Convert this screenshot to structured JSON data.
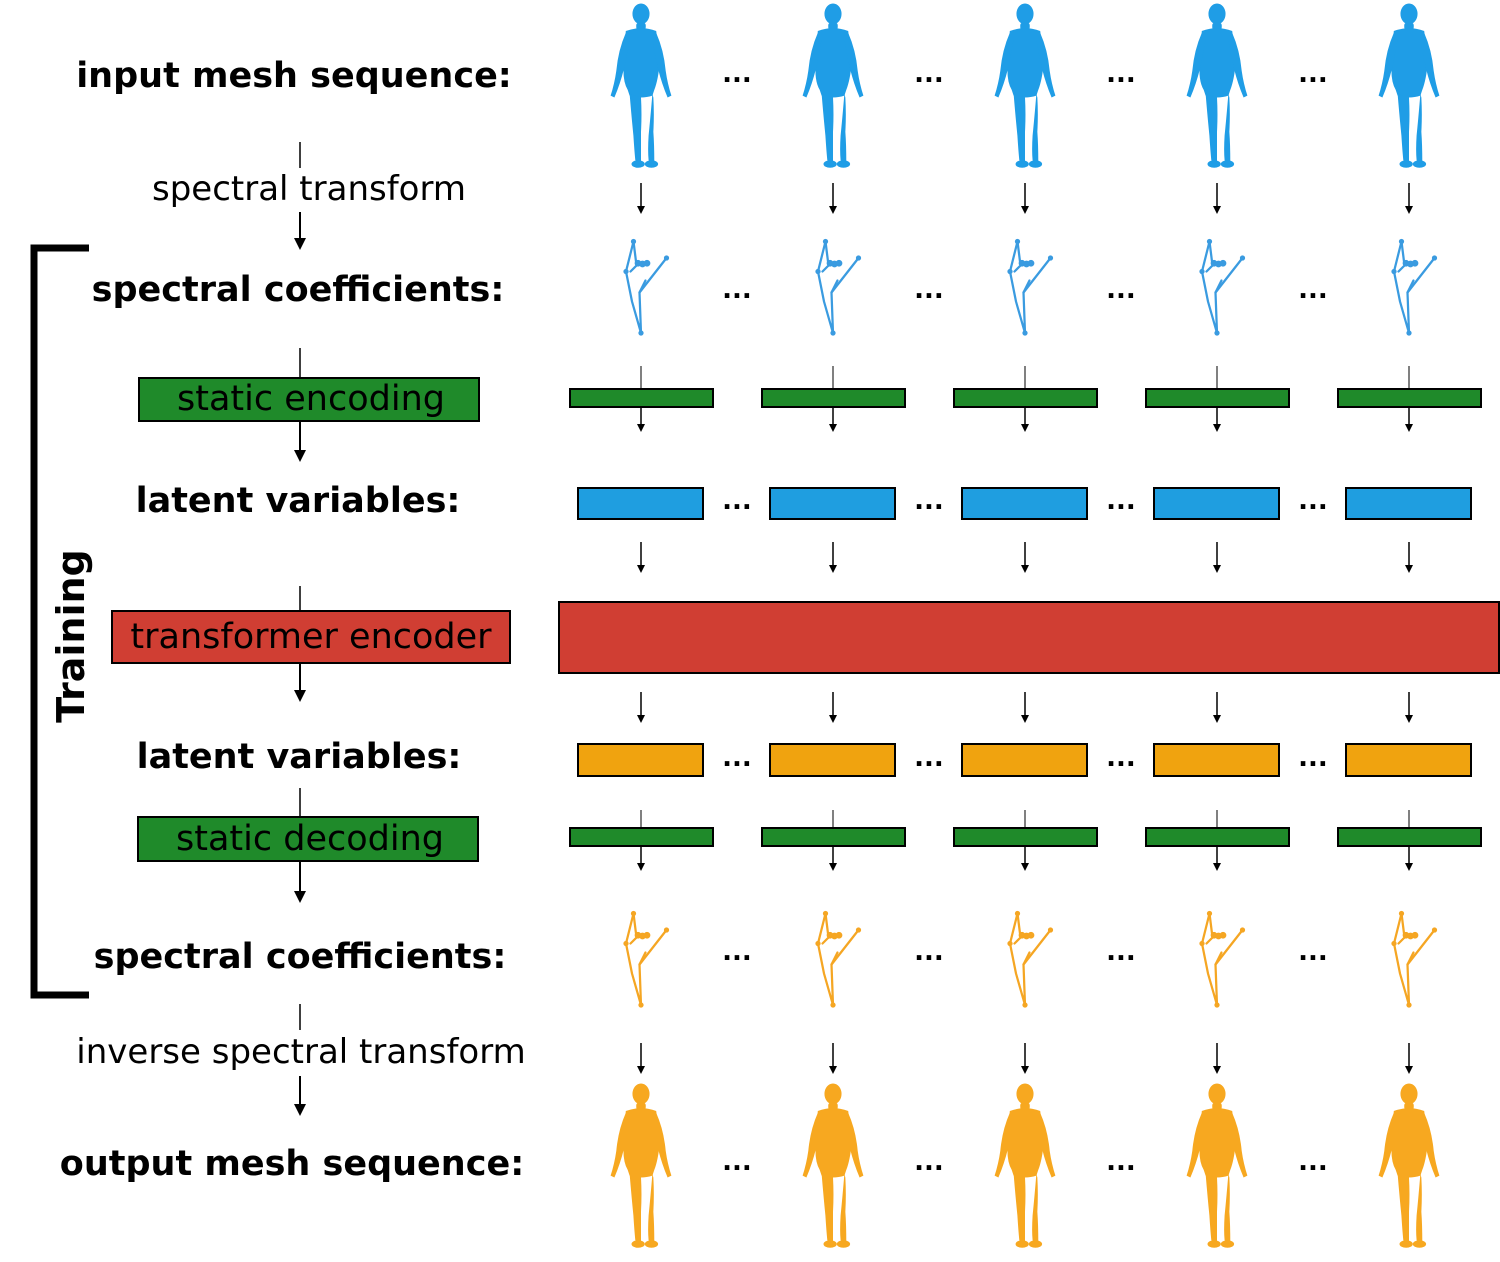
{
  "labels": {
    "input_mesh": "input mesh sequence:",
    "spectral_transform": "spectral transform",
    "spectral_coeffs_top": "spectral coefficients:",
    "static_encoding": "static encoding",
    "latent_top": "latent variables:",
    "transformer_encoder": "transformer encoder",
    "latent_bottom": "latent variables:",
    "static_decoding": "static decoding",
    "spectral_coeffs_bottom": "spectral coefficients:",
    "inverse_spectral_transform": "inverse spectral transform",
    "output_mesh": "output mesh sequence:",
    "training": "Training",
    "ellipsis": "..."
  },
  "colors": {
    "input_mesh": "#1f9de6",
    "output_mesh": "#f7a820",
    "spectral_in": "#3a9be0",
    "spectral_out": "#f5a623",
    "static_block": "#1f8a2a",
    "latent_in": "#1f9ee0",
    "latent_out": "#f0a30f",
    "transformer": "#d03e33"
  },
  "frame_count_shown": 5
}
